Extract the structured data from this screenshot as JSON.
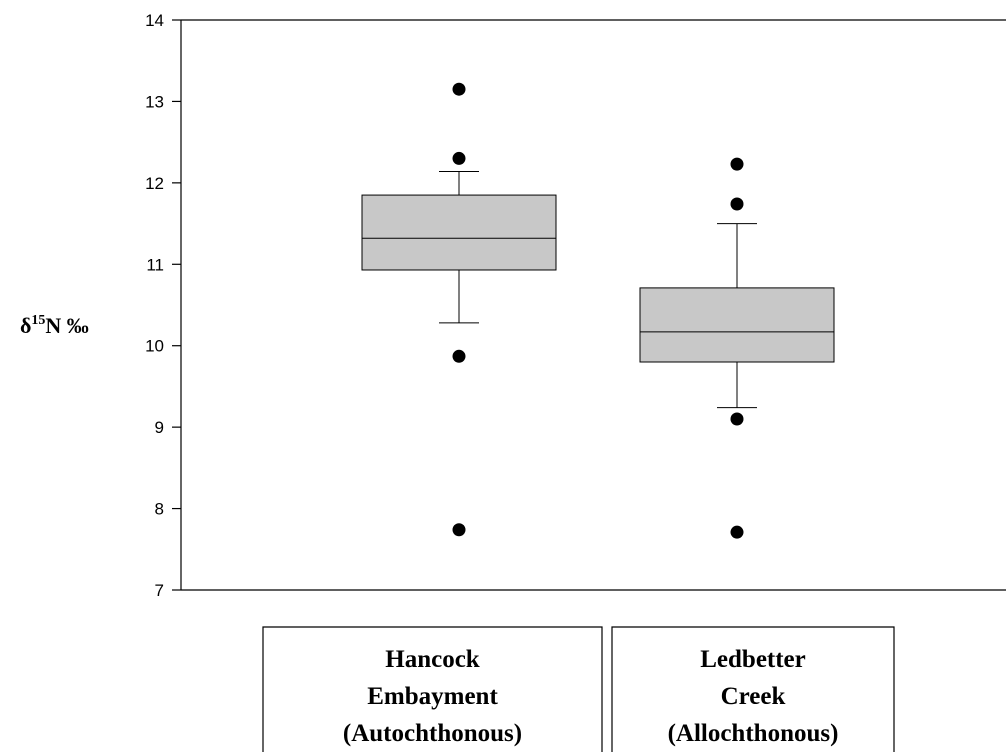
{
  "chart_data": {
    "type": "box",
    "ylabel": {
      "prefix": "δ",
      "superscript": "15",
      "suffix": "N ‰"
    },
    "ylim": [
      7,
      14
    ],
    "yticks": [
      7,
      8,
      9,
      10,
      11,
      12,
      13,
      14
    ],
    "grid": false,
    "box_fill": "#c8c8c8",
    "categories": [
      {
        "label_lines": [
          "Hancock",
          "Embayment",
          "(Autochthonous)"
        ],
        "whisker_low": 10.28,
        "q1": 10.93,
        "median": 11.32,
        "q3": 11.85,
        "whisker_high": 12.14,
        "outliers": [
          13.15,
          12.3,
          9.87,
          7.74
        ]
      },
      {
        "label_lines": [
          "Ledbetter",
          "Creek",
          "(Allochthonous)"
        ],
        "whisker_low": 9.24,
        "q1": 9.8,
        "median": 10.17,
        "q3": 10.71,
        "whisker_high": 11.5,
        "outliers": [
          12.23,
          11.74,
          9.1,
          7.71
        ]
      }
    ]
  }
}
